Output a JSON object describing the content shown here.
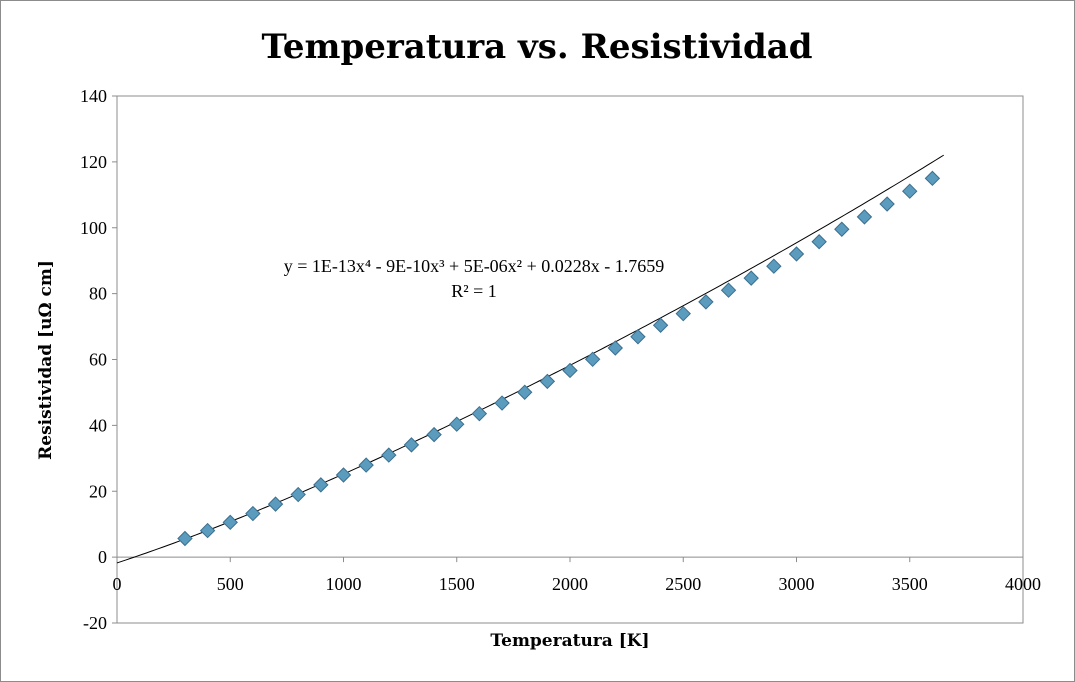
{
  "chart_data": {
    "type": "scatter",
    "title": "Temperatura vs. Resistividad",
    "xlabel": "Temperatura [K]",
    "ylabel": "Resistividad [uΩ cm]",
    "xlim": [
      0,
      4000
    ],
    "ylim": [
      -20,
      140
    ],
    "x_ticks": [
      "0",
      "500",
      "1000",
      "1500",
      "2000",
      "2500",
      "3000",
      "3500",
      "4000"
    ],
    "y_ticks": [
      "-20",
      "0",
      "20",
      "40",
      "60",
      "80",
      "100",
      "120",
      "140"
    ],
    "grid": false,
    "legend": "none",
    "marker": "diamond",
    "marker_color": "#5b9bbd",
    "trendline": {
      "type": "polynomial",
      "order": 4,
      "coefficients": [
        1e-13,
        -9e-10,
        5e-06,
        0.0228,
        -1.7659
      ],
      "equation_text": "y = 1E-13x⁴ - 9E-10x³ + 5E-06x² + 0.0228x - 1.7659",
      "r2_text": "R² = 1",
      "x_range": [
        0,
        3650
      ]
    },
    "series": [
      {
        "x": [
          300,
          400,
          500,
          600,
          700,
          800,
          900,
          1000,
          1100,
          1200,
          1300,
          1400,
          1500,
          1600,
          1700,
          1800,
          1900,
          2000,
          2100,
          2200,
          2300,
          2400,
          2500,
          2600,
          2700,
          2800,
          2900,
          3000,
          3100,
          3200,
          3300,
          3400,
          3500,
          3600
        ],
        "y": [
          5.65,
          8.06,
          10.56,
          13.23,
          16.09,
          19.0,
          21.94,
          24.93,
          27.94,
          30.98,
          34.08,
          37.19,
          40.36,
          43.55,
          46.78,
          50.05,
          53.35,
          56.67,
          60.06,
          63.48,
          66.91,
          70.39,
          73.91,
          77.49,
          81.04,
          84.7,
          88.33,
          92.04,
          95.76,
          99.54,
          103.3,
          107.2,
          111.1,
          115.0
        ]
      }
    ]
  }
}
